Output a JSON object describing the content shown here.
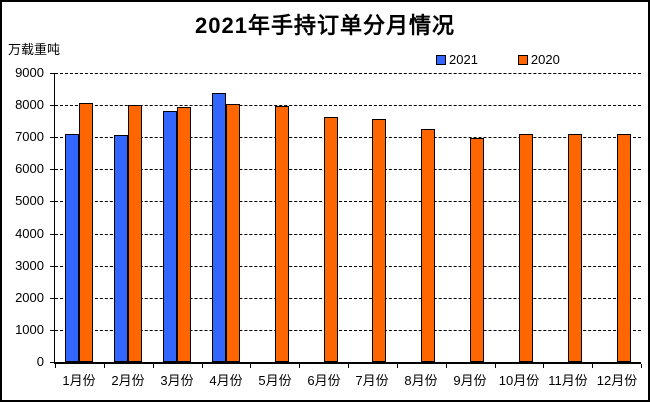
{
  "window": {
    "background_color": "#FFFFFF",
    "border_color": "#000000"
  },
  "chart_data": {
    "type": "bar",
    "title": "2021年手持订单分月情况",
    "ylabel": "万载重吨",
    "xlabel": "",
    "categories": [
      "1月份",
      "2月份",
      "3月份",
      "4月份",
      "5月份",
      "6月份",
      "7月份",
      "8月份",
      "9月份",
      "10月份",
      "11月份",
      "12月份"
    ],
    "series": [
      {
        "name": "2021",
        "color": "#3366FF",
        "values": [
          7100,
          7060,
          7820,
          8380,
          null,
          null,
          null,
          null,
          null,
          null,
          null,
          null
        ]
      },
      {
        "name": "2020",
        "color": "#FF6600",
        "values": [
          8080,
          8010,
          7950,
          8040,
          7980,
          7640,
          7560,
          7260,
          6990,
          7110,
          7110,
          7110
        ]
      }
    ],
    "ylim": [
      0,
      9000
    ],
    "ytick_interval": 1000,
    "ytick_labels": [
      "0",
      "1000",
      "2000",
      "3000",
      "4000",
      "5000",
      "6000",
      "7000",
      "8000",
      "9000"
    ],
    "grid": "horizontal-dashed",
    "legend_position": "top-right",
    "bar_border_color": "#000000"
  }
}
